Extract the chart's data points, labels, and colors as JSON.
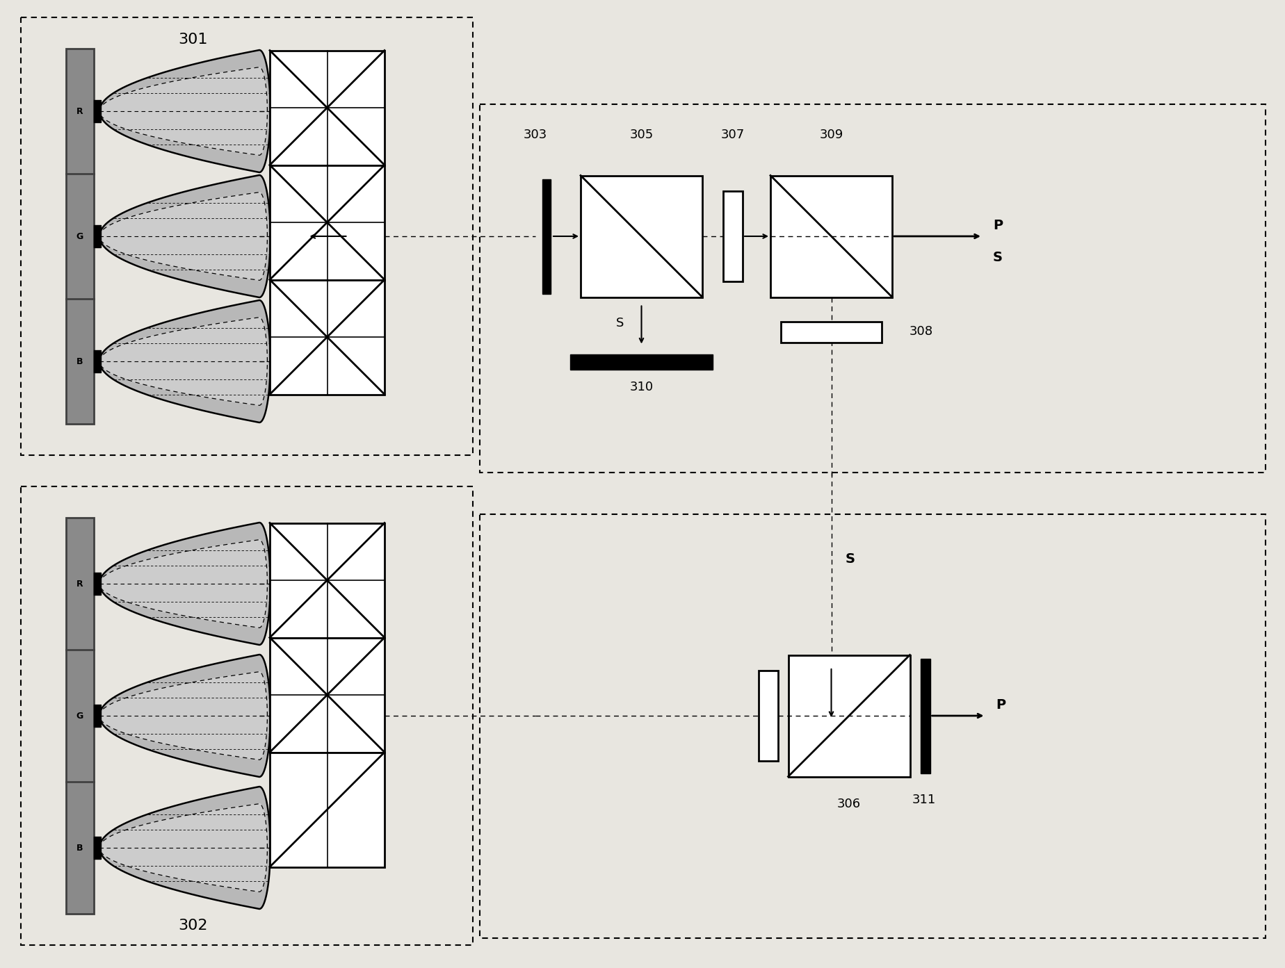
{
  "bg_color": "#e8e6e0",
  "panel_color": "#8a8a8a",
  "panel_dark": "#404040",
  "lens_fill": "#b8b8b8",
  "lens_inner": "#cccccc",
  "black": "#111111",
  "white": "#ffffff",
  "label_301": "301",
  "label_302": "302",
  "label_303": "303",
  "label_305": "305",
  "label_307": "307",
  "label_308": "308",
  "label_309": "309",
  "label_310": "310",
  "label_306": "306",
  "label_311": "311",
  "label_P": "P",
  "label_S": "S",
  "fig_w": 18.49,
  "fig_h": 13.93,
  "dpi": 100
}
